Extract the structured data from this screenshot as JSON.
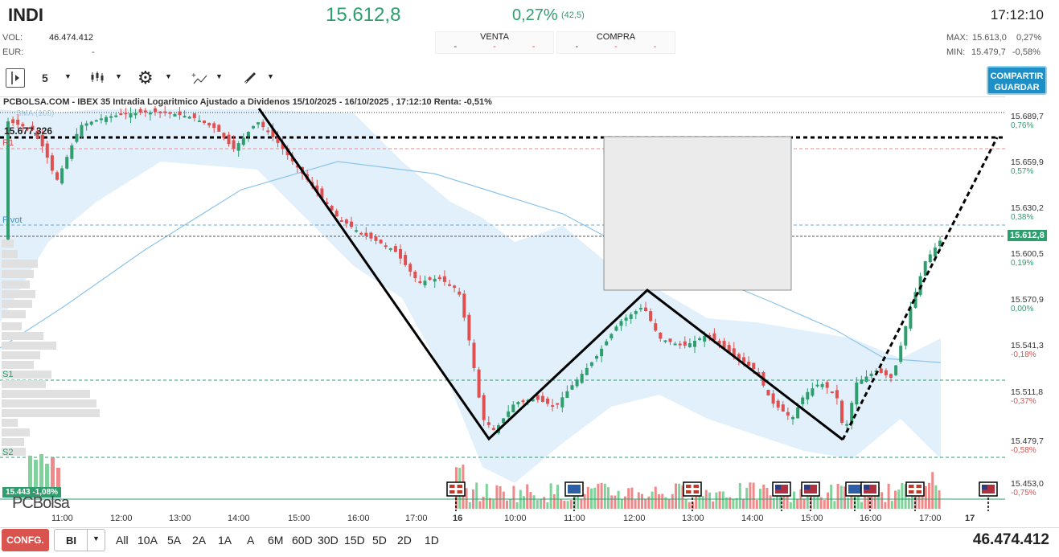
{
  "header": {
    "ticker": "INDI",
    "last_price": "15.612,8",
    "change_pct": "0,27%",
    "change_pts": "(42,5)",
    "clock": "17:12:10",
    "vol_label": "VOL:",
    "vol_value": "46.474.412",
    "eur_label": "EUR:",
    "eur_value": "-",
    "venta_label": "VENTA",
    "compra_label": "COMPRA",
    "max_label": "MAX:",
    "max_value": "15.613,0",
    "max_pct": "0,27%",
    "min_label": "MIN:",
    "min_value": "15.479,7",
    "min_pct": "-0,58%",
    "dash": "-"
  },
  "toolbar": {
    "interval": "5",
    "share_line1": "COMPARTIR",
    "share_line2": "GUARDAR"
  },
  "chart": {
    "title": "PCBOLSA.COM - IBEX 35 Intradia Logaritmico Ajustado a Dividenos 15/10/2025 - 16/10/2025 , 17:12:10 Renta: -0,51%",
    "sma_label": "SMA (100)",
    "level_15677": "15.677,326",
    "r1": "R1",
    "pivot": "Pivot",
    "s1": "S1",
    "s2": "S2",
    "low_badge": "15.443 -1,08%",
    "last_badge": "15.612,8",
    "logo": "PCBolsa",
    "y_ticks": [
      {
        "value": "15.689,7",
        "pct": "0,76%",
        "color": "#2e9e6e"
      },
      {
        "value": "15.659,9",
        "pct": "0,57%",
        "color": "#2e9e6e"
      },
      {
        "value": "15.630,2",
        "pct": "0,38%",
        "color": "#2e9e6e"
      },
      {
        "value": "15.600,5",
        "pct": "0,19%",
        "color": "#2e9e6e"
      },
      {
        "value": "15.570,9",
        "pct": "0,00%",
        "color": "#2e9e6e"
      },
      {
        "value": "15.541,3",
        "pct": "-0,18%",
        "color": "#e05050"
      },
      {
        "value": "15.511,8",
        "pct": "-0,37%",
        "color": "#e05050"
      },
      {
        "value": "15.479,7",
        "pct": "-0,58%",
        "color": "#e05050"
      },
      {
        "value": "15.453,0",
        "pct": "-0,75%",
        "color": "#e05050"
      }
    ],
    "x_ticks": [
      "11:00",
      "12:00",
      "13:00",
      "14:00",
      "15:00",
      "16:00",
      "17:00",
      "16",
      "10:00",
      "11:00",
      "12:00",
      "13:00",
      "14:00",
      "15:00",
      "16:00",
      "17:00",
      "17"
    ]
  },
  "bottom": {
    "config": "CONFG.",
    "bi": "BI",
    "timeframes": [
      "All",
      "10A",
      "5A",
      "2A",
      "1A",
      "A",
      "6M",
      "60D",
      "30D",
      "15D",
      "5D",
      "2D",
      "1D"
    ],
    "volume": "46.474.412"
  },
  "colors": {
    "up": "#2e9e6e",
    "down": "#e05050",
    "accent": "#1e8fc6"
  }
}
